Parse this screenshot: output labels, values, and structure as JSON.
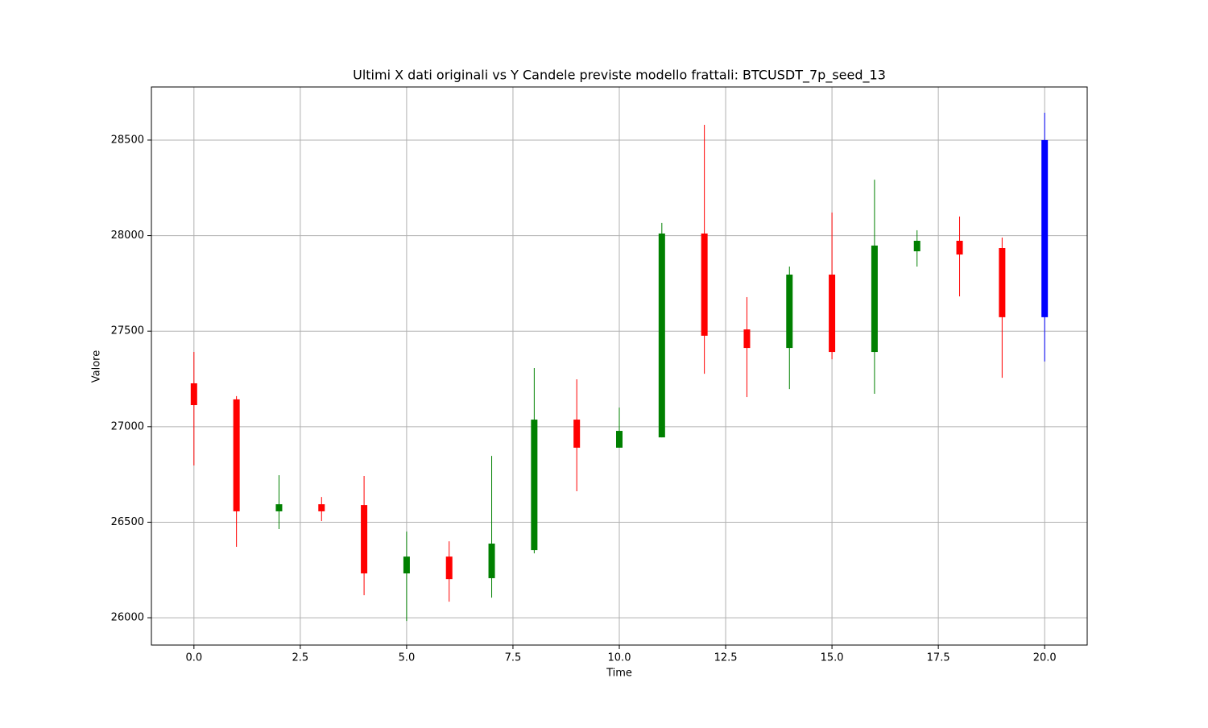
{
  "chart_data": {
    "type": "candlestick",
    "title": "Ultimi X dati originali vs Y Candele previste modello frattali: BTCUSDT_7p_seed_13",
    "x_label": "Time",
    "y_label": "Valore",
    "x": [
      0,
      1,
      2,
      3,
      4,
      5,
      6,
      7,
      8,
      9,
      10,
      11,
      12,
      13,
      14,
      15,
      16,
      17,
      18,
      19,
      20
    ],
    "open": [
      27227,
      27143,
      26557,
      26594,
      26590,
      26232,
      26320,
      26207,
      26354,
      27037,
      26890,
      26944,
      28011,
      27509,
      27412,
      27796,
      27391,
      27918,
      27973,
      27935,
      27573
    ],
    "high": [
      27391,
      27160,
      26746,
      26632,
      26742,
      26451,
      26400,
      26847,
      27307,
      27248,
      27100,
      28066,
      28580,
      27678,
      27838,
      28121,
      28293,
      28028,
      28100,
      27990,
      28643
    ],
    "low": [
      26797,
      26371,
      26464,
      26506,
      26118,
      25983,
      26084,
      26105,
      26337,
      26662,
      26890,
      26944,
      27277,
      27155,
      27197,
      27353,
      27172,
      27838,
      27682,
      27256,
      27341
    ],
    "close": [
      27113,
      26557,
      26594,
      26557,
      26232,
      26320,
      26202,
      26388,
      27037,
      26890,
      26978,
      28011,
      27476,
      27412,
      27796,
      27391,
      27948,
      27973,
      27901,
      27573,
      28500
    ],
    "colors": [
      "red",
      "red",
      "green",
      "red",
      "red",
      "green",
      "red",
      "green",
      "green",
      "red",
      "green",
      "green",
      "red",
      "red",
      "green",
      "red",
      "green",
      "green",
      "red",
      "red",
      "blue"
    ],
    "xlim": [
      -1,
      21
    ],
    "ylim": [
      25857,
      28778
    ],
    "xticks": [
      {
        "value": 0,
        "label": "0.0"
      },
      {
        "value": 2.5,
        "label": "2.5"
      },
      {
        "value": 5,
        "label": "5.0"
      },
      {
        "value": 7.5,
        "label": "7.5"
      },
      {
        "value": 10,
        "label": "10.0"
      },
      {
        "value": 12.5,
        "label": "12.5"
      },
      {
        "value": 15,
        "label": "15.0"
      },
      {
        "value": 17.5,
        "label": "17.5"
      },
      {
        "value": 20,
        "label": "20.0"
      }
    ],
    "yticks": [
      26000,
      26500,
      27000,
      27500,
      28000,
      28500
    ],
    "grid": true
  }
}
